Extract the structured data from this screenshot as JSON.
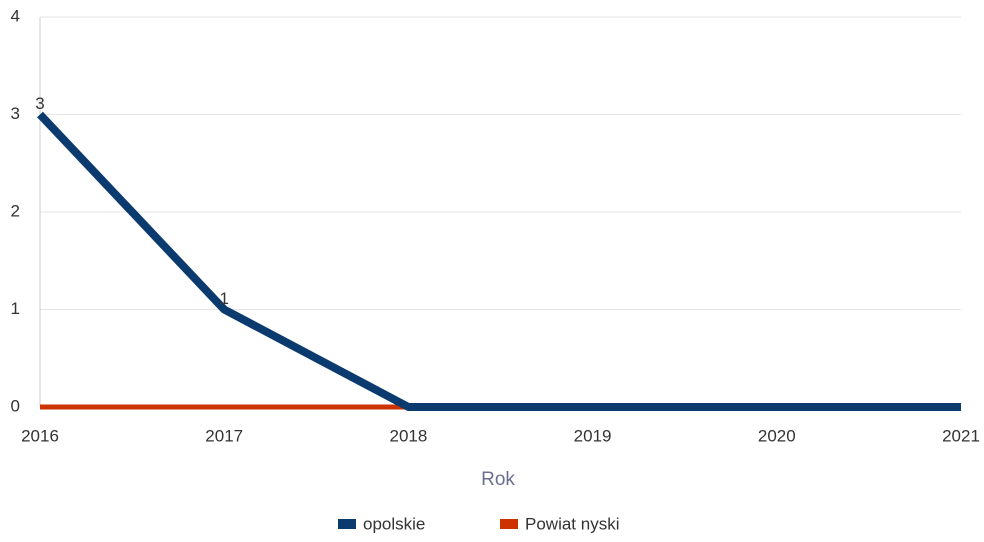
{
  "chart_data": {
    "type": "line",
    "x": [
      2016,
      2017,
      2018,
      2019,
      2020,
      2021
    ],
    "xlim": [
      2016,
      2021
    ],
    "xticks": [
      2016,
      2017,
      2018,
      2019,
      2020,
      2021
    ],
    "ylim": [
      0,
      4
    ],
    "yticks": [
      0,
      1,
      2,
      3,
      4
    ],
    "grid": true,
    "xlabel": "Rok",
    "legend": "bottom",
    "series": [
      {
        "name": "opolskie",
        "color": "#0b3a6e",
        "values": [
          3,
          1,
          0,
          0,
          0,
          0
        ],
        "value_labels": [
          "3",
          "1",
          null,
          null,
          null,
          null
        ]
      },
      {
        "name": "Powiat nyski",
        "color": "#cc3300",
        "values": [
          0,
          0,
          0,
          0,
          0,
          0
        ]
      }
    ]
  }
}
